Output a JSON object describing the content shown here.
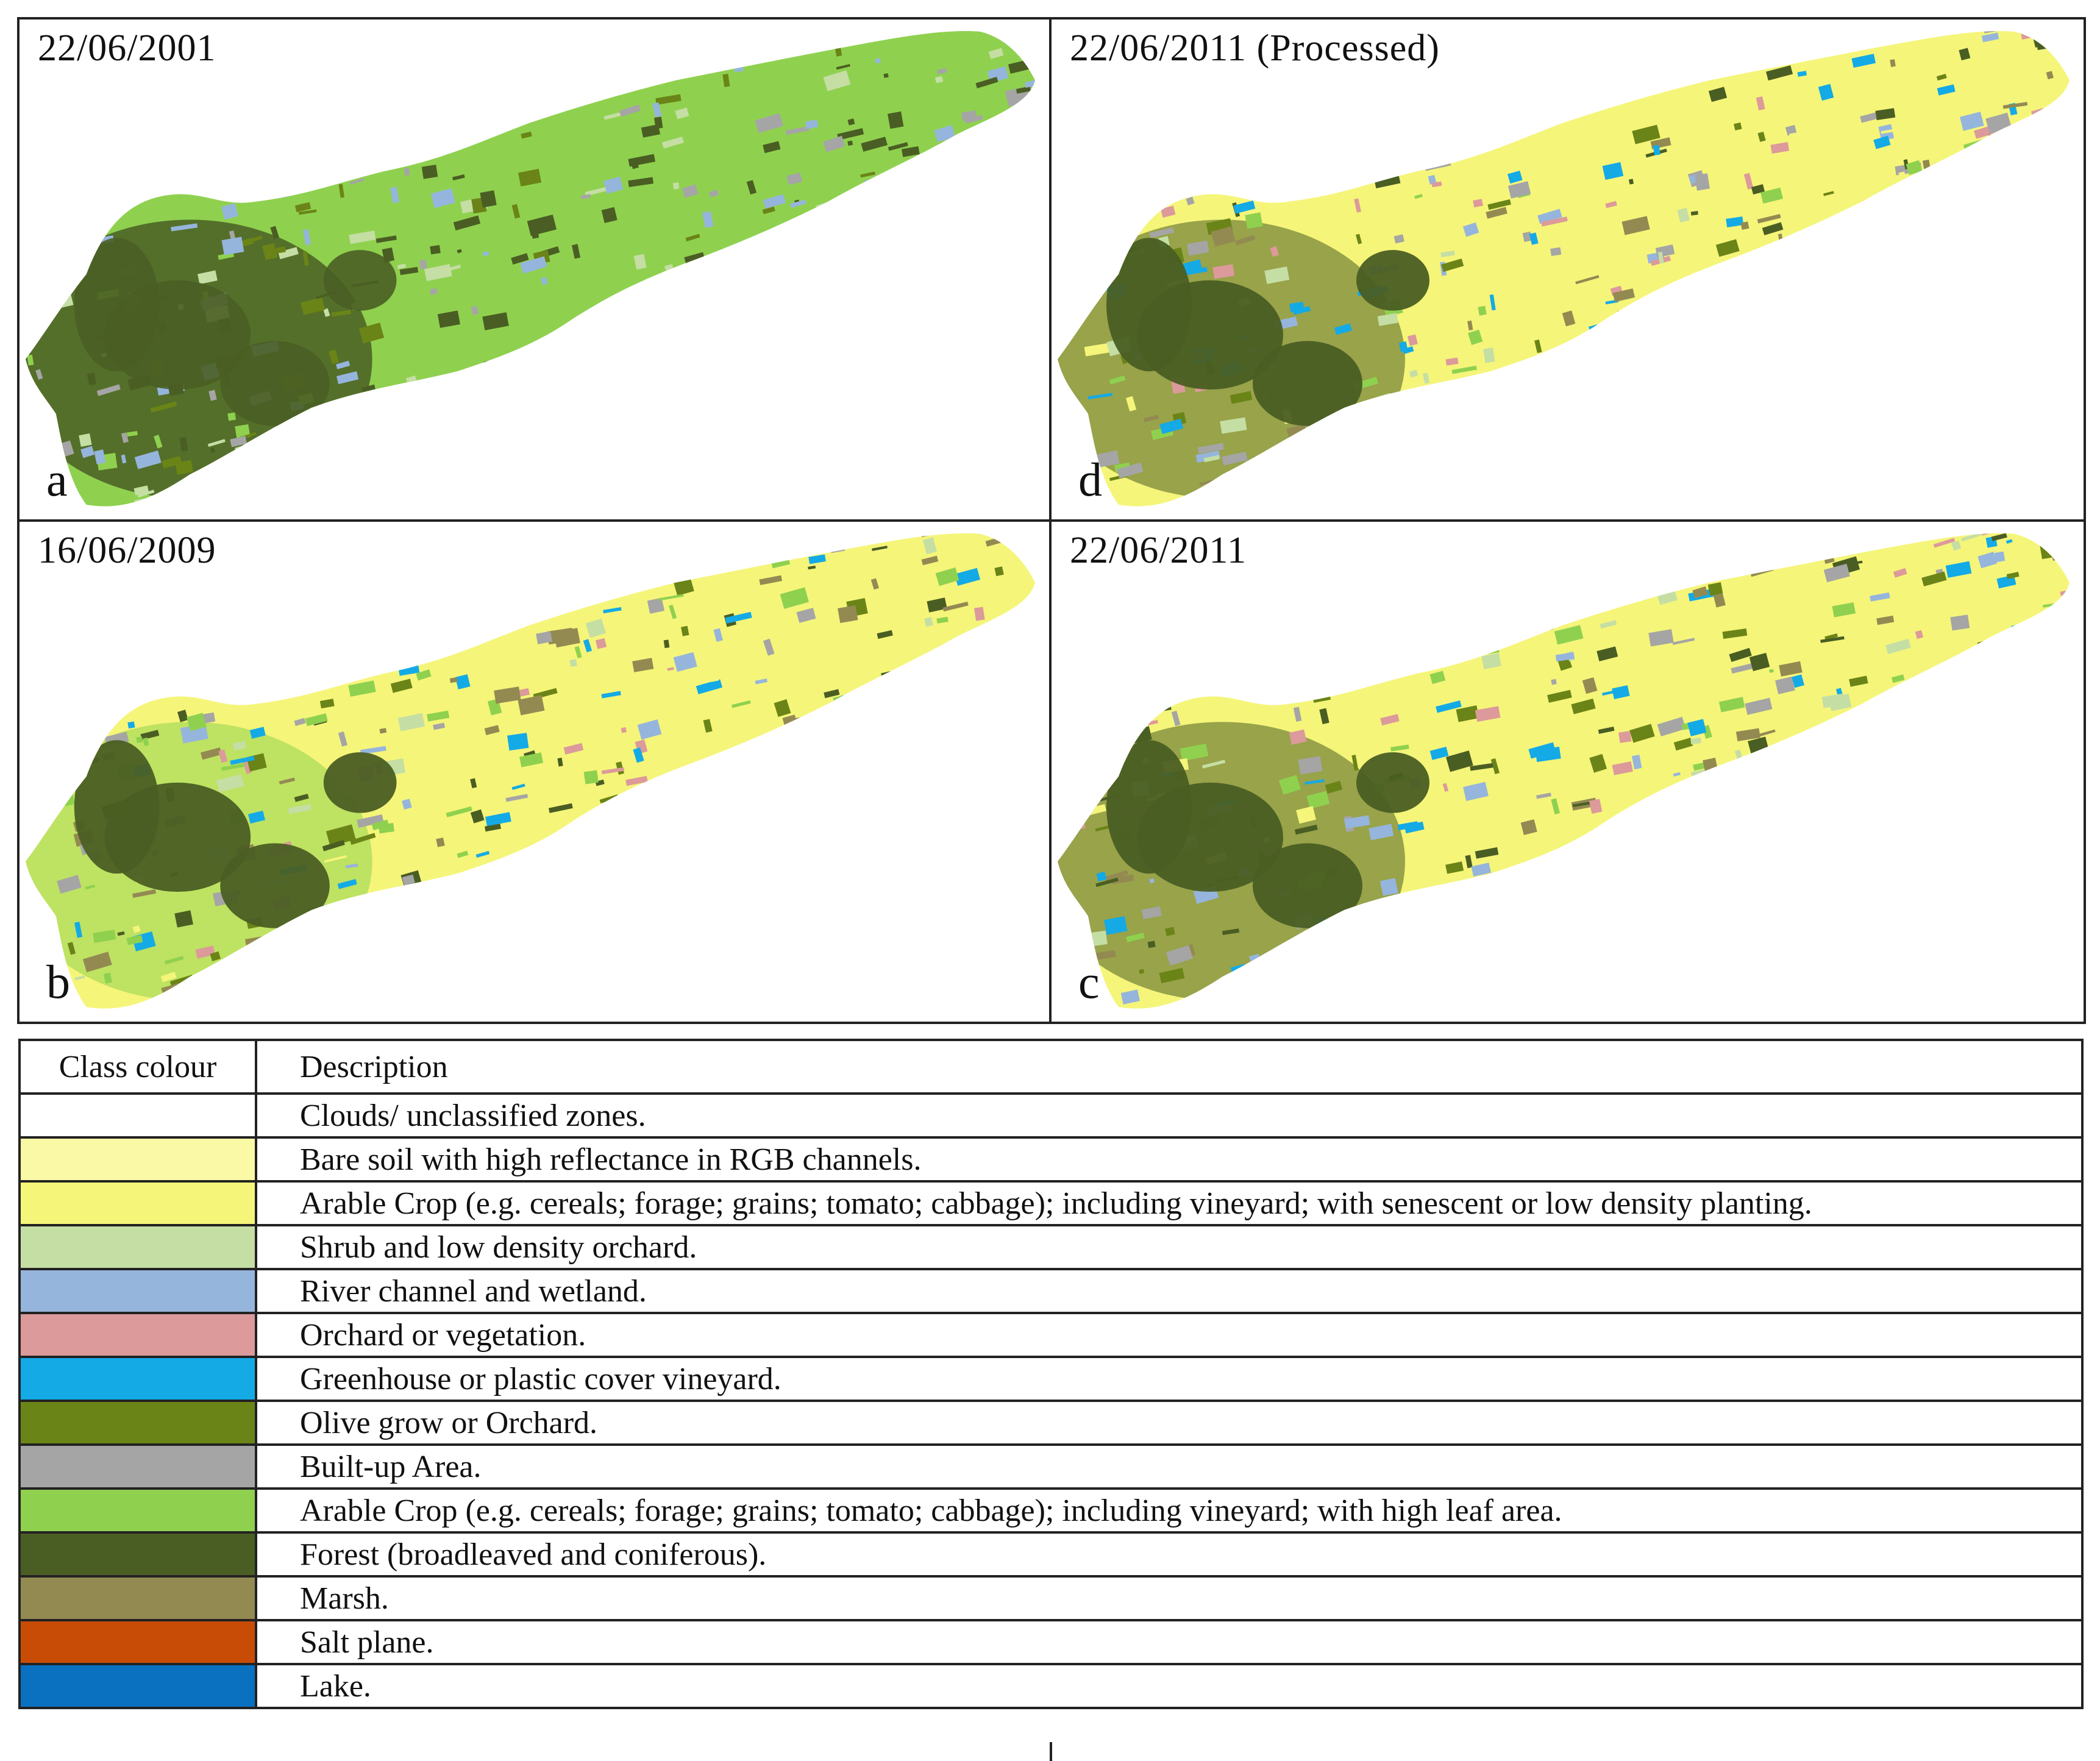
{
  "panels": [
    {
      "id": "a",
      "letter": "a",
      "date": "22/06/2001",
      "dominant": "#8fd14f",
      "secondary": "#4a5e23"
    },
    {
      "id": "d",
      "letter": "d",
      "date": "22/06/2011 (Processed)",
      "dominant": "#f5f57a",
      "secondary": "#4a5e23"
    },
    {
      "id": "b",
      "letter": "b",
      "date": "16/06/2009",
      "dominant": "#f5f57a",
      "secondary": "#8fd14f"
    },
    {
      "id": "c",
      "letter": "c",
      "date": "22/06/2011",
      "dominant": "#f5f57a",
      "secondary": "#4a5e23"
    }
  ],
  "legend": {
    "header_colour": "Class colour",
    "header_description": "Description",
    "classes": [
      {
        "color": "#ffffff",
        "description": "Clouds/ unclassified zones."
      },
      {
        "color": "#fafaa6",
        "description": "Bare soil with high reflectance in RGB channels."
      },
      {
        "color": "#f5f57a",
        "description": "Arable Crop (e.g. cereals; forage; grains; tomato; cabbage); including vineyard; with senescent or low density planting."
      },
      {
        "color": "#c5dea4",
        "description": "Shrub and low density orchard."
      },
      {
        "color": "#96b5dc",
        "description": "River channel and wetland."
      },
      {
        "color": "#dc9a9a",
        "description": "Orchard or vegetation."
      },
      {
        "color": "#14aae6",
        "description": "Greenhouse or plastic cover vineyard."
      },
      {
        "color": "#6b8417",
        "description": "Olive grow or Orchard."
      },
      {
        "color": "#a5a5a5",
        "description": "Built-up Area."
      },
      {
        "color": "#8fd14f",
        "description": "Arable Crop (e.g. cereals; forage; grains; tomato; cabbage); including vineyard; with high leaf area."
      },
      {
        "color": "#4a5e23",
        "description": "Forest (broadleaved and coniferous)."
      },
      {
        "color": "#938a52",
        "description": "Marsh."
      },
      {
        "color": "#c94c06",
        "description": "Salt plane."
      },
      {
        "color": "#0a70c0",
        "description": "Lake."
      }
    ]
  }
}
